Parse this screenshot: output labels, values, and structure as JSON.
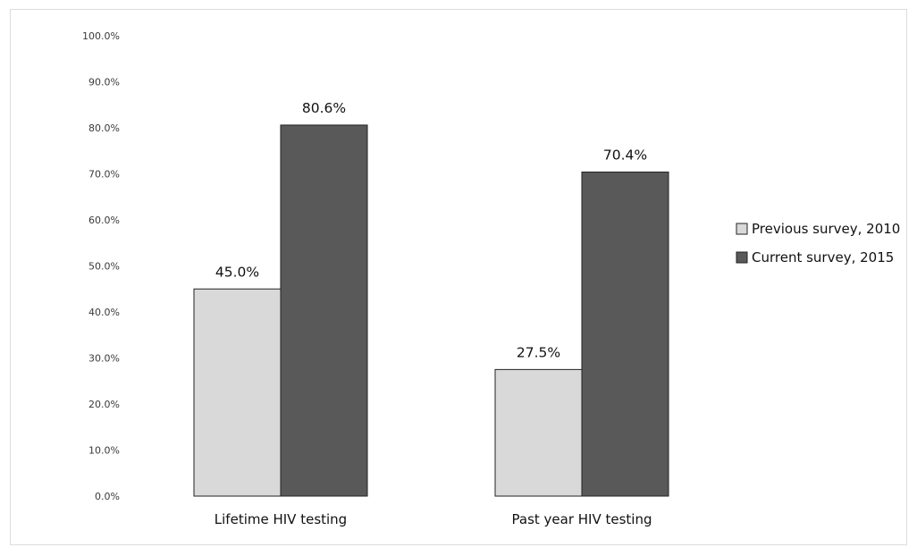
{
  "chart_data": {
    "type": "bar",
    "categories": [
      "Lifetime HIV testing",
      "Past year HIV testing"
    ],
    "series": [
      {
        "name": "Previous survey, 2010",
        "values": [
          45.0,
          27.5
        ],
        "color": "#d9d9d9"
      },
      {
        "name": "Current survey, 2015",
        "values": [
          80.6,
          70.4
        ],
        "color": "#595959"
      }
    ],
    "data_labels": [
      [
        "45.0%",
        "27.5%"
      ],
      [
        "80.6%",
        "70.4%"
      ]
    ],
    "ylim": [
      0,
      100
    ],
    "yticks": [
      0,
      10,
      20,
      30,
      40,
      50,
      60,
      70,
      80,
      90,
      100
    ],
    "ytick_labels": [
      "0.0%",
      "10.0%",
      "20.0%",
      "30.0%",
      "40.0%",
      "50.0%",
      "60.0%",
      "70.0%",
      "80.0%",
      "90.0%",
      "100.0%"
    ],
    "title": "",
    "xlabel": "",
    "ylabel": "",
    "grid": false,
    "legend_position": "right"
  }
}
